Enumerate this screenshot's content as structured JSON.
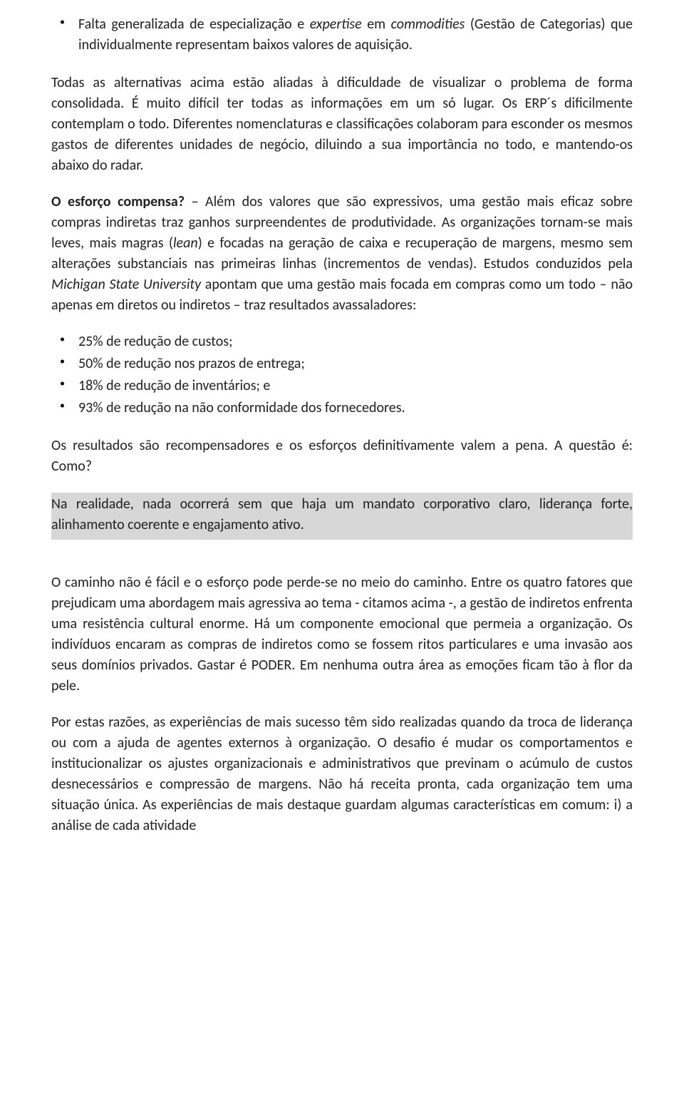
{
  "bullet1_pre": "Falta generalizada de especialização e ",
  "bullet1_it1": "expertise",
  "bullet1_mid": " em ",
  "bullet1_it2": "commodities",
  "bullet1_post": " (Gestão de Categorias) que individualmente representam baixos valores de aquisição.",
  "para1": "Todas as alternativas acima estão aliadas à dificuldade de visualizar o problema de forma consolidada. É muito difícil ter todas as informações em um só lugar. Os ERP´s dificilmente contemplam o todo. Diferentes nomenclaturas e classificações colaboram para esconder os mesmos gastos de diferentes unidades de negócio, diluindo a sua importância no todo, e mantendo-os abaixo do radar.",
  "para2_bold": "O esforço compensa?",
  "para2_a": " – Além dos valores que são expressivos, uma gestão mais eficaz sobre compras indiretas traz ganhos surpreendentes de produtividade. As organizações tornam-se mais leves, mais magras (",
  "para2_lean": "lean",
  "para2_b": ") e focadas na geração de caixa e recuperação de margens, mesmo sem alterações substanciais nas primeiras linhas (incrementos de vendas). Estudos conduzidos pela ",
  "para2_msu": "Michigan State University",
  "para2_c": " apontam que uma gestão mais focada em compras como um todo – não apenas em diretos ou indiretos – traz resultados avassaladores:",
  "results": [
    "25% de redução de custos;",
    "50% de redução nos prazos de entrega;",
    "18% de redução de inventários; e",
    "93% de redução na não conformidade dos fornecedores."
  ],
  "para3": "Os resultados são recompensadores e os esforços definitivamente valem a pena. A questão é: Como?",
  "highlight": "Na realidade, nada ocorrerá sem que haja um mandato corporativo claro, liderança forte, alinhamento coerente e engajamento ativo.",
  "para4": "O caminho não é fácil e o esforço pode perde-se no meio do caminho. Entre os quatro fatores que prejudicam uma abordagem mais agressiva ao tema - citamos acima -, a gestão de indiretos enfrenta uma resistência cultural enorme. Há um componente emocional que permeia a organização. Os indivíduos encaram as compras de indiretos como se fossem ritos particulares e uma invasão aos seus domínios privados. Gastar é PODER. Em nenhuma outra área as emoções ficam tão à flor da pele.",
  "para5": "Por estas razões, as experiências de mais sucesso têm sido realizadas quando da troca de liderança ou com a ajuda de agentes externos à organização. O desafio é mudar os comportamentos e institucionalizar os ajustes organizacionais e administrativos que previnam o acúmulo de custos desnecessários e compressão de margens. Não há receita pronta, cada organização tem uma situação única. As experiências de mais destaque guardam algumas características em comum: i) a análise de cada atividade"
}
